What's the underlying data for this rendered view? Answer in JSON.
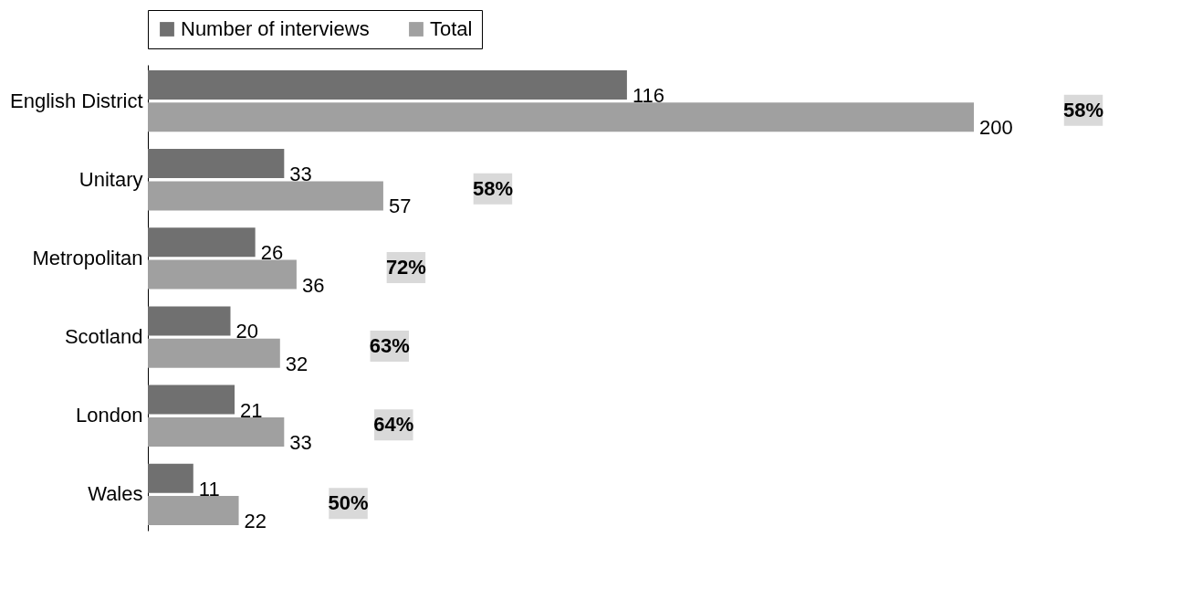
{
  "chart_data": {
    "type": "bar",
    "orientation": "horizontal",
    "categories": [
      "English District",
      "Unitary",
      "Metropolitan",
      "Scotland",
      "London",
      "Wales"
    ],
    "series": [
      {
        "name": "Number of interviews",
        "color": "#707070",
        "values": [
          116,
          33,
          26,
          20,
          21,
          11
        ]
      },
      {
        "name": "Total",
        "color": "#a0a0a0",
        "values": [
          200,
          57,
          36,
          32,
          33,
          22
        ]
      }
    ],
    "data_labels": true,
    "legend": "top",
    "tick_labels": "y",
    "grid": false,
    "annotations": [
      "58%",
      "58%",
      "72%",
      "63%",
      "64%",
      "50%"
    ]
  }
}
